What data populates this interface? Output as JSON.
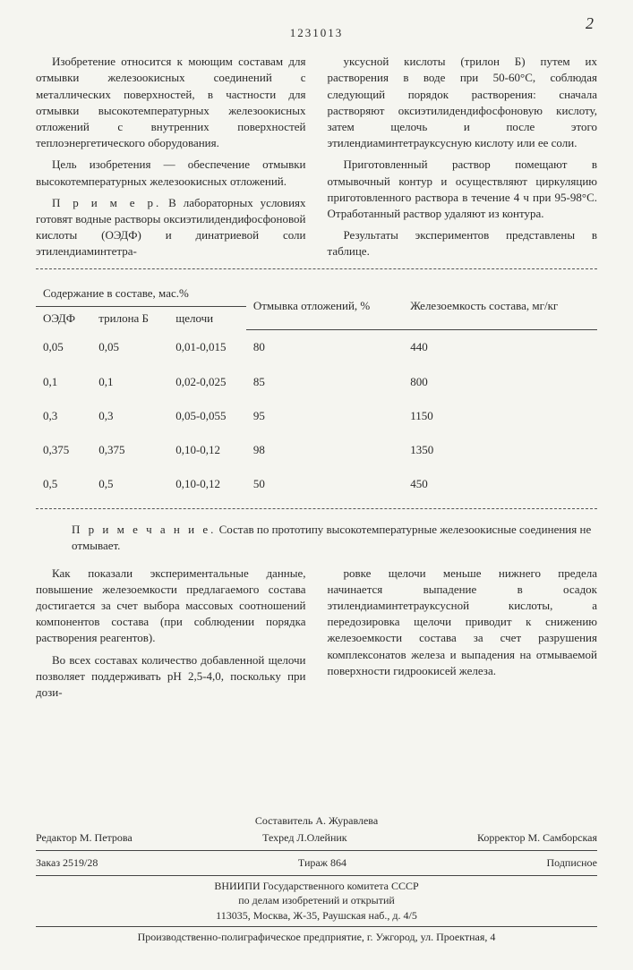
{
  "doc_number": "1231013",
  "corner_number": "2",
  "left_col": {
    "p1": "Изобретение относится к моющим составам для отмывки железоокисных соединений с металлических поверхностей, в частности для отмывки высокотемпературных железоокисных отложений с внутренних поверхностей теплоэнергетического оборудования.",
    "p2": "Цель изобретения — обеспечение отмывки высокотемпературных железоокисных отложений.",
    "p3_label": "П р и м е р.",
    "p3": " В лабораторных условиях готовят водные растворы оксиэтилидендифосфоновой кислоты (ОЭДФ) и динатриевой соли этилендиаминтетра-"
  },
  "right_col": {
    "p1": "уксусной кислоты (трилон Б) путем их растворения в воде при 50-60°С, соблюдая следующий порядок растворения: сначала растворяют оксиэтилидендифосфоновую кислоту, затем щелочь и после этого этилендиаминтетрауксусную кислоту или ее соли.",
    "p2": "Приготовленный раствор помещают в отмывочный контур и осуществляют циркуляцию приготовленного раствора в течение 4 ч при 95-98°С. Отработанный раствор удаляют из контура.",
    "p3": "Результаты экспериментов представлены в таблице."
  },
  "table": {
    "group_header": "Содержание в составе, мас.%",
    "col1": "ОЭДФ",
    "col2": "трилона Б",
    "col3": "щелочи",
    "col4": "Отмывка отложений, %",
    "col5": "Железоемкость состава, мг/кг",
    "rows": [
      [
        "0,05",
        "0,05",
        "0,01-0,015",
        "80",
        "440"
      ],
      [
        "0,1",
        "0,1",
        "0,02-0,025",
        "85",
        "800"
      ],
      [
        "0,3",
        "0,3",
        "0,05-0,055",
        "95",
        "1150"
      ],
      [
        "0,375",
        "0,375",
        "0,10-0,12",
        "98",
        "1350"
      ],
      [
        "0,5",
        "0,5",
        "0,10-0,12",
        "50",
        "450"
      ]
    ]
  },
  "note_label": "П р и м е ч а н и е.",
  "note_text": " Состав по прототипу высокотемпературные железоокисные соединения не отмывает.",
  "bottom_left": {
    "p1": "Как показали экспериментальные данные, повышение железоемкости предлагаемого состава достигается за счет выбора массовых соотношений компонентов состава (при соблюдении порядка растворения реагентов).",
    "p2": "Во всех составах количество добавленной щелочи позволяет поддерживать pH 2,5-4,0, поскольку при дози-"
  },
  "bottom_right": {
    "p1": "ровке щелочи меньше нижнего предела начинается выпадение в осадок этилендиаминтетрауксусной кислоты, а передозировка щелочи приводит к снижению железоемкости состава за счет разрушения комплексонатов железа и выпадения на отмываемой поверхности гидроокисей железа."
  },
  "colophon": {
    "compiler": "Составитель А. Журавлева",
    "editor": "Редактор М. Петрова",
    "techred": "Техред Л.Олейник",
    "corrector": "Корректор М. Самборская",
    "order": "Заказ 2519/28",
    "tirage": "Тираж 864",
    "subscription": "Подписное",
    "org1": "ВНИИПИ Государственного комитета СССР",
    "org2": "по делам изобретений и открытий",
    "address": "113035, Москва, Ж-35, Раушская наб., д. 4/5",
    "printer": "Производственно-полиграфическое предприятие, г. Ужгород, ул. Проектная, 4"
  }
}
